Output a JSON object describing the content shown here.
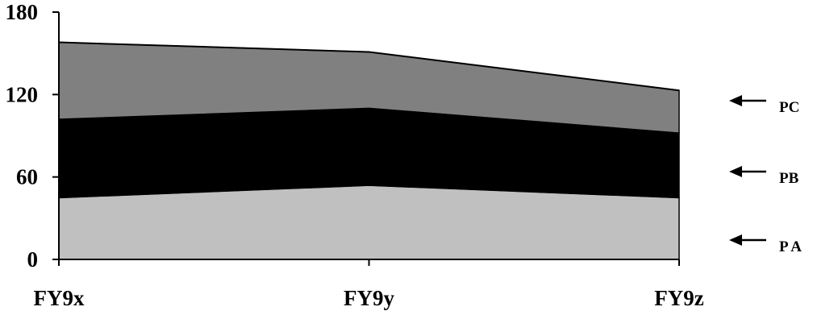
{
  "chart_data": {
    "type": "area",
    "stacked": true,
    "categories": [
      "FY9x",
      "FY9y",
      "FY9z"
    ],
    "series": [
      {
        "name": "P A",
        "values": [
          45,
          54,
          45
        ],
        "color": "#c0c0c0"
      },
      {
        "name": "PB",
        "values": [
          57,
          56,
          47
        ],
        "color": "#000000"
      },
      {
        "name": "PC",
        "values": [
          56,
          41,
          31
        ],
        "color": "#808080"
      }
    ],
    "ylim": [
      0,
      180
    ],
    "yticks": [
      "0",
      "60",
      "120",
      "180"
    ],
    "grid": false,
    "legend": "right, arrows pointing to each layer"
  }
}
